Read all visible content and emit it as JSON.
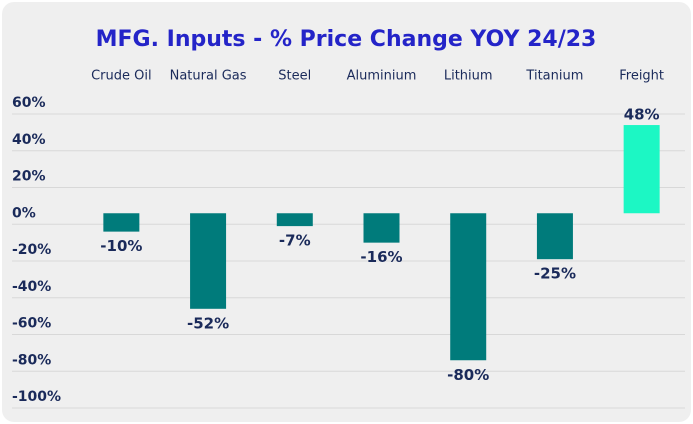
{
  "chart_data": {
    "type": "bar",
    "title": "MFG. Inputs - % Price Change YOY 24/23",
    "categories": [
      "Crude Oil",
      "Natural Gas",
      "Steel",
      "Aluminium",
      "Lithium",
      "Titanium",
      "Freight"
    ],
    "values": [
      -10,
      -52,
      -7,
      -16,
      -80,
      -25,
      48
    ],
    "value_labels": [
      "-10%",
      "-52%",
      "-7%",
      "-16%",
      "-80%",
      "-25%",
      "48%"
    ],
    "colors": [
      "#007b7b",
      "#007b7b",
      "#007b7b",
      "#007b7b",
      "#007b7b",
      "#007b7b",
      "#1cf7c4"
    ],
    "ylim": [
      -100,
      60
    ],
    "yticks": [
      {
        "value": 60,
        "label": "60%"
      },
      {
        "value": 40,
        "label": "40%"
      },
      {
        "value": 20,
        "label": "20%"
      },
      {
        "value": 0,
        "label": "0%"
      },
      {
        "value": -20,
        "label": "-20%"
      },
      {
        "value": -40,
        "label": "-40%"
      },
      {
        "value": -60,
        "label": "-60%"
      },
      {
        "value": -80,
        "label": "-80%"
      },
      {
        "value": -100,
        "label": "-100%"
      }
    ],
    "grid": true
  }
}
